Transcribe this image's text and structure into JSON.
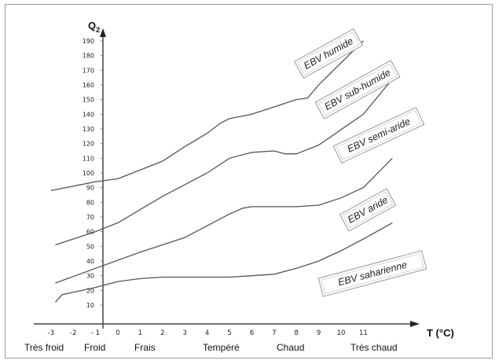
{
  "chart_data": {
    "type": "line",
    "ylabel_main": "Q",
    "ylabel_sub": "2",
    "xlabel": "T (°C)",
    "x_ticks": [
      "-3",
      "-2",
      "- 1",
      "0",
      "1",
      "2",
      "3",
      "4",
      "5",
      "6",
      "7",
      "8",
      "9",
      "10",
      "11"
    ],
    "y_ticks": [
      10,
      20,
      30,
      40,
      50,
      60,
      70,
      80,
      90,
      100,
      110,
      120,
      130,
      140,
      150,
      160,
      170,
      180,
      190
    ],
    "xlim": [
      -3.5,
      13.5
    ],
    "ylim": [
      -15,
      205
    ],
    "zones": [
      "Très froid",
      "Froid",
      "Frais",
      "Tempéré",
      "Chaud",
      "Très chaud"
    ],
    "band_labels": [
      "EBV humide",
      "EBV sub-humide",
      "EBV semi-aride",
      "EBV aride",
      "EBV saharienne"
    ],
    "series": [
      {
        "values": [
          [
            -3.0,
            88
          ],
          [
            -1.0,
            94
          ],
          [
            0.0,
            96
          ],
          [
            2.0,
            108
          ],
          [
            3.0,
            118
          ],
          [
            4.0,
            127
          ],
          [
            4.6,
            134
          ],
          [
            5.0,
            137
          ],
          [
            6.0,
            140
          ],
          [
            7.0,
            145
          ],
          [
            8.0,
            150
          ],
          [
            8.5,
            151
          ],
          [
            9.0,
            160
          ],
          [
            11.0,
            190
          ]
        ]
      },
      {
        "values": [
          [
            -2.8,
            51
          ],
          [
            -1.0,
            60
          ],
          [
            0.0,
            66
          ],
          [
            1.0,
            75
          ],
          [
            2.0,
            84
          ],
          [
            3.0,
            92
          ],
          [
            4.0,
            100
          ],
          [
            5.0,
            110
          ],
          [
            6.0,
            114
          ],
          [
            7.0,
            115
          ],
          [
            7.5,
            113
          ],
          [
            8.0,
            113
          ],
          [
            9.0,
            119
          ],
          [
            11.0,
            140
          ],
          [
            12.3,
            164
          ]
        ]
      },
      {
        "values": [
          [
            -2.8,
            25
          ],
          [
            -1.0,
            35
          ],
          [
            1.0,
            46
          ],
          [
            3.0,
            56
          ],
          [
            5.0,
            72
          ],
          [
            5.6,
            76
          ],
          [
            6.0,
            77
          ],
          [
            7.0,
            77
          ],
          [
            8.0,
            77
          ],
          [
            9.0,
            78
          ],
          [
            10.0,
            83
          ],
          [
            11.0,
            90
          ],
          [
            12.3,
            110
          ]
        ]
      },
      {
        "values": [
          [
            -2.8,
            12
          ],
          [
            -2.5,
            17
          ],
          [
            -1.0,
            22
          ],
          [
            0.0,
            26
          ],
          [
            1.0,
            28
          ],
          [
            2.0,
            29
          ],
          [
            3.0,
            29
          ],
          [
            4.0,
            29
          ],
          [
            5.0,
            29
          ],
          [
            6.0,
            30
          ],
          [
            7.0,
            31
          ],
          [
            8.0,
            35
          ],
          [
            9.0,
            40
          ],
          [
            10.0,
            47
          ],
          [
            11.0,
            55
          ],
          [
            12.3,
            66
          ]
        ]
      }
    ]
  }
}
